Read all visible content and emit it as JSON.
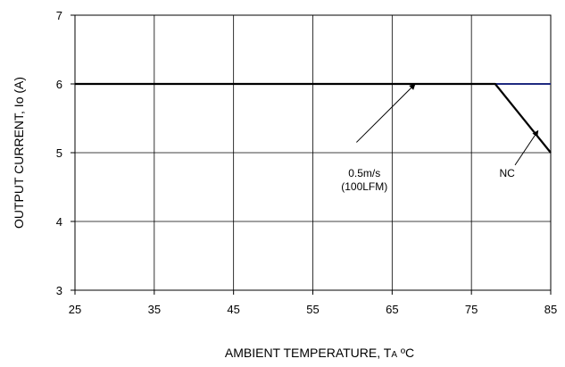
{
  "chart_data": {
    "type": "line",
    "xlabel_main": "AMBIENT TEMPERATURE, T",
    "xlabel_sub": "A",
    "xlabel_unit": " ºC",
    "ylabel": "OUTPUT CURRENT, Io  (A)",
    "xlim": [
      25,
      85
    ],
    "ylim": [
      3,
      7
    ],
    "x_ticks": [
      25,
      35,
      45,
      55,
      65,
      75,
      85
    ],
    "y_ticks": [
      3,
      4,
      5,
      6,
      7
    ],
    "x_tick_labels": [
      "25",
      "35",
      "45",
      "55",
      "65",
      "75",
      "85"
    ],
    "y_tick_labels": [
      "3",
      "4",
      "5",
      "6",
      "7"
    ],
    "grid": true,
    "series": [
      {
        "name": "0.5m/s (100LFM)",
        "color": "#1f2a80",
        "x": [
          25,
          85
        ],
        "y": [
          6,
          6
        ]
      },
      {
        "name": "NC",
        "color": "#000000",
        "x": [
          25,
          78,
          85
        ],
        "y": [
          6,
          6,
          5
        ]
      }
    ],
    "annotations": [
      {
        "lines": [
          "0.5m/s",
          "(100LFM)"
        ],
        "text_at": [
          61.5,
          4.65
        ],
        "arrow_from": [
          60.5,
          5.15
        ],
        "arrow_to": [
          67.9,
          6.0
        ]
      },
      {
        "lines": [
          "NC"
        ],
        "text_at": [
          79.5,
          4.65
        ],
        "arrow_from": [
          80.5,
          4.82
        ],
        "arrow_to": [
          83.4,
          5.32
        ]
      }
    ]
  }
}
